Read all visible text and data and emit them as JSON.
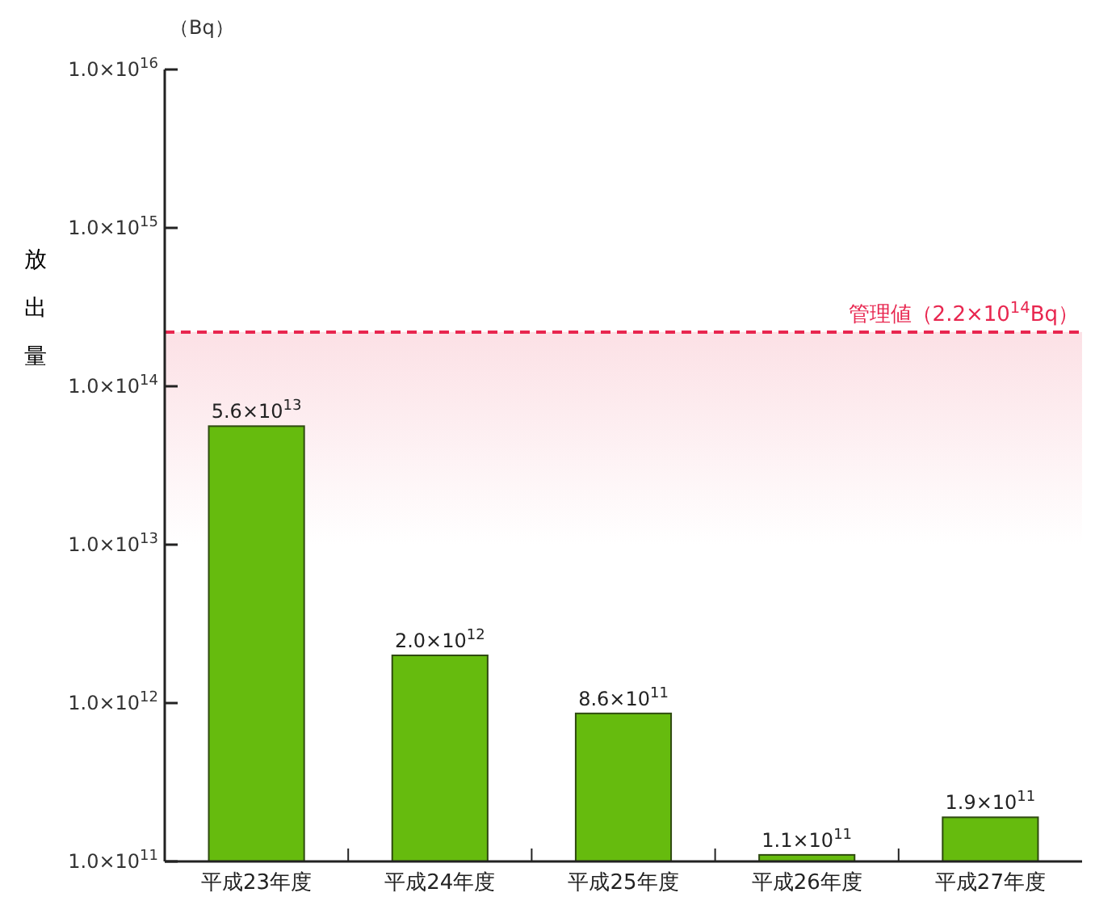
{
  "chart_data": {
    "type": "bar",
    "ylabel": "放出量",
    "annotations": [
      "（Bq）"
    ],
    "categories": [
      "平成23年度",
      "平成24年度",
      "平成25年度",
      "平成26年度",
      "平成27年度"
    ],
    "series": [
      {
        "color": "#66bb0e",
        "values": [
          56000000000000.0,
          2000000000000.0,
          860000000000.0,
          110000000000.0,
          190000000000.0
        ],
        "value_labels": [
          "5.6×10$^{13}$",
          "2.0×10$^{12}$",
          "8.6×10$^{11}$",
          "1.1×10$^{11}$",
          "1.9×10$^{11}$"
        ]
      }
    ],
    "log": true,
    "ylim": [
      100000000000.0,
      1e+16
    ],
    "yticks": [
      {
        "value": 100000000000.0,
        "label": "1.0×10$^{11}$"
      },
      {
        "value": 1000000000000.0,
        "label": "1.0×10$^{12}$"
      },
      {
        "value": 10000000000000.0,
        "label": "1.0×10$^{13}$"
      },
      {
        "value": 100000000000000.0,
        "label": "1.0×10$^{14}$"
      },
      {
        "value": 1000000000000000.0,
        "label": "1.0×10$^{15}$"
      },
      {
        "value": 1e+16,
        "label": "1.0×10$^{16}$"
      }
    ],
    "ref_lines": [
      {
        "axis": "y",
        "value": 220000000000000.0,
        "label": "管理値（2.2×10$^{14}$Bq）",
        "color": "#e8264f",
        "line_style": "dashed"
      }
    ],
    "bands": [
      {
        "axis": "y",
        "from": 10000000000000.0,
        "to": 220000000000000.0,
        "color": "#fbd9df"
      }
    ],
    "grid": false
  }
}
